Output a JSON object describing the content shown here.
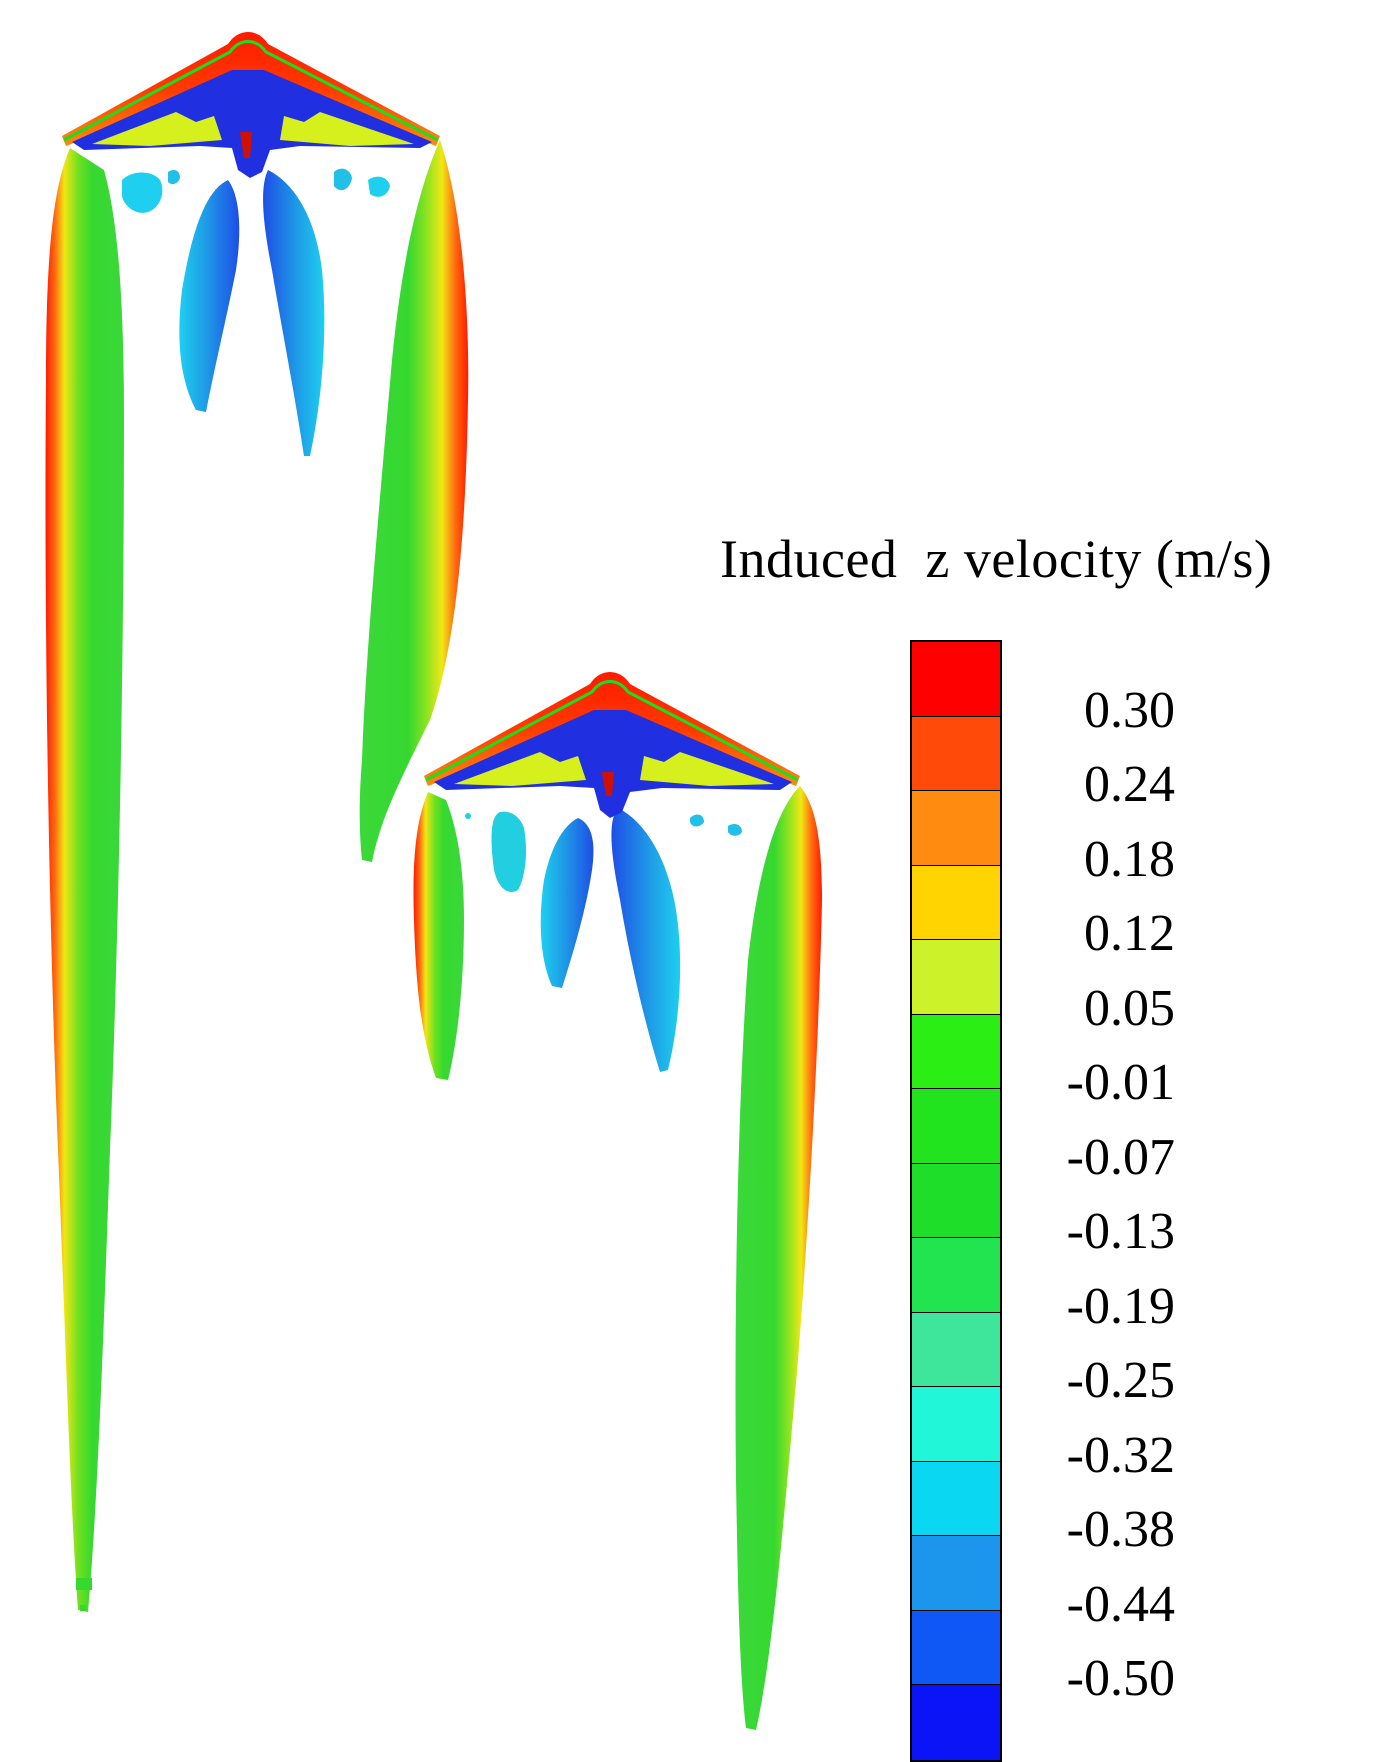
{
  "legend": {
    "title": "Induced  z velocity (m/s)",
    "levels": [
      "0.30",
      "0.24",
      "0.18",
      "0.12",
      "0.05",
      "-0.01",
      "-0.07",
      "-0.13",
      "-0.19",
      "-0.25",
      "-0.32",
      "-0.38",
      "-0.44",
      "-0.50"
    ],
    "colors": [
      "#ff0000",
      "#ff4a0a",
      "#ff8c10",
      "#ffd400",
      "#ccf22a",
      "#2aee14",
      "#22e41e",
      "#1ede2a",
      "#22e450",
      "#3ee69c",
      "#22f6d8",
      "#0ad8f2",
      "#1c96ec",
      "#1058f6",
      "#0a14f6"
    ]
  },
  "colors": {
    "tip_red": "#ff1a00",
    "tip_orange": "#ff9a10",
    "tip_yellow": "#f2e614",
    "core_green": "#36d830",
    "blue_vortex": "#1e7ae6",
    "cyan_vortex": "#1ecff0",
    "wing_blue": "#2030e0",
    "wing_yellow": "#d6f01e"
  }
}
